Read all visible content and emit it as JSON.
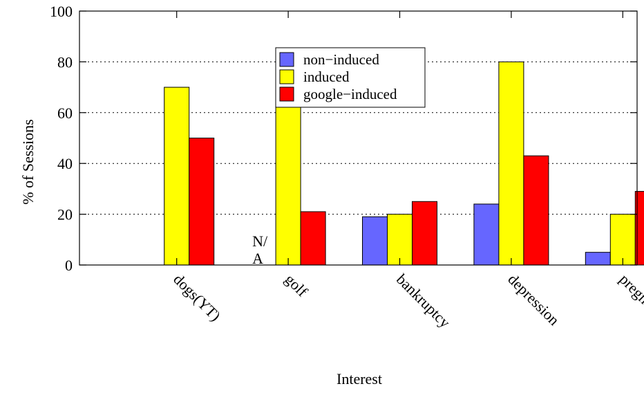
{
  "chart_data": {
    "type": "bar",
    "title": "",
    "xlabel": "Interest",
    "ylabel": "% of Sessions",
    "ylim": [
      0,
      100
    ],
    "yticks": [
      0,
      20,
      40,
      60,
      80,
      100
    ],
    "grid": "horizontal dotted",
    "legend_position": "top-center",
    "categories": [
      "dogs(YT)",
      "golf",
      "bankruptcy",
      "depression",
      "pregnant(YT)"
    ],
    "series": [
      {
        "name": "non−induced",
        "color": "#6666ff",
        "values": [
          0,
          null,
          19,
          24,
          5
        ]
      },
      {
        "name": "induced",
        "color": "#ffff00",
        "values": [
          70,
          74,
          20,
          80,
          20
        ]
      },
      {
        "name": "google−induced",
        "color": "#ff0000",
        "values": [
          50,
          21,
          25,
          43,
          29
        ]
      }
    ],
    "annotations": [
      {
        "category": "golf",
        "series": "non−induced",
        "text_line1": "N/",
        "text_line2": "A"
      }
    ]
  }
}
